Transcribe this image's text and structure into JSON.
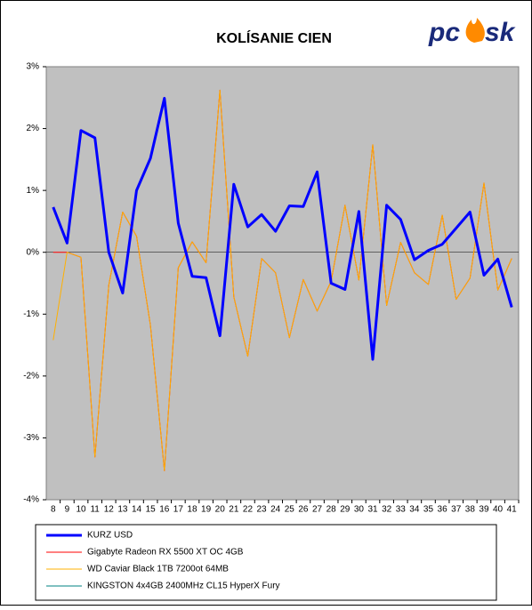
{
  "chart_data": {
    "type": "line",
    "title": "KOLÍSANIE CIEN",
    "logo": [
      "pc",
      "sk"
    ],
    "categories": [
      "8",
      "9",
      "10",
      "11",
      "12",
      "13",
      "14",
      "15",
      "16",
      "17",
      "18",
      "19",
      "20",
      "21",
      "22",
      "23",
      "24",
      "25",
      "26",
      "27",
      "28",
      "29",
      "30",
      "31",
      "32",
      "33",
      "34",
      "35",
      "36",
      "37",
      "38",
      "39",
      "40",
      "41"
    ],
    "series": [
      {
        "name": "KURZ USD",
        "color": "#0000ff",
        "values": [
          0.73,
          0.15,
          1.97,
          1.85,
          0.0,
          -0.66,
          1.0,
          1.52,
          2.49,
          0.47,
          -0.39,
          -0.41,
          -1.35,
          1.1,
          0.41,
          0.61,
          0.34,
          0.75,
          0.74,
          1.3,
          -0.5,
          -0.6,
          0.66,
          -1.73,
          0.76,
          0.53,
          -0.12,
          0.03,
          0.13,
          0.39,
          0.65,
          -0.37,
          -0.11,
          -0.89
        ]
      },
      {
        "name": "Gigabyte Radeon RX 5500 XT OC 4GB",
        "color": "#ff0000",
        "values": [
          0,
          0,
          -0.08,
          -3.31,
          -0.53,
          0.65,
          0.26,
          -1.18,
          -3.53,
          -0.25,
          0.17,
          -0.17,
          2.62,
          -0.72,
          -1.68,
          -0.1,
          -0.33,
          -1.38,
          -0.44,
          -0.95,
          -0.47,
          0.76,
          -0.45,
          1.74,
          -0.86,
          0.16,
          -0.33,
          -0.52,
          0.6,
          -0.76,
          -0.42,
          1.12,
          -0.61,
          -0.1
        ]
      },
      {
        "name": "WD Caviar Black 1TB 7200ot 64MB",
        "color": "#ffb000",
        "values": [
          -1.42,
          0,
          -0.08,
          -3.31,
          -0.53,
          0.65,
          0.26,
          -1.18,
          -3.53,
          -0.25,
          0.17,
          -0.17,
          2.62,
          -0.72,
          -1.68,
          -0.1,
          -0.33,
          -1.38,
          -0.44,
          -0.95,
          -0.47,
          0.76,
          -0.45,
          1.74,
          -0.86,
          0.16,
          -0.33,
          -0.52,
          0.6,
          -0.76,
          -0.42,
          1.12,
          -0.61,
          -0.1
        ]
      },
      {
        "name": "KINGSTON 4x4GB 2400MHz CL15 HyperX Fury",
        "color": "#008080",
        "values": [
          null,
          null,
          null,
          null,
          null,
          null,
          null,
          null,
          null,
          null,
          null,
          null,
          null,
          null,
          null,
          null,
          null,
          null,
          null,
          null,
          null,
          null,
          null,
          null,
          null,
          null,
          null,
          null,
          null,
          null,
          null,
          null,
          null,
          null
        ]
      }
    ],
    "ylim": [
      -4,
      3
    ],
    "yticks": [
      {
        "value": -4,
        "label": "-4%"
      },
      {
        "value": -3,
        "label": "-3%"
      },
      {
        "value": -2,
        "label": "-2%"
      },
      {
        "value": -1,
        "label": "-1%"
      },
      {
        "value": 0,
        "label": "0%"
      },
      {
        "value": 1,
        "label": "1%"
      },
      {
        "value": 2,
        "label": "2%"
      },
      {
        "value": 3,
        "label": "3%"
      }
    ],
    "grid": false
  }
}
